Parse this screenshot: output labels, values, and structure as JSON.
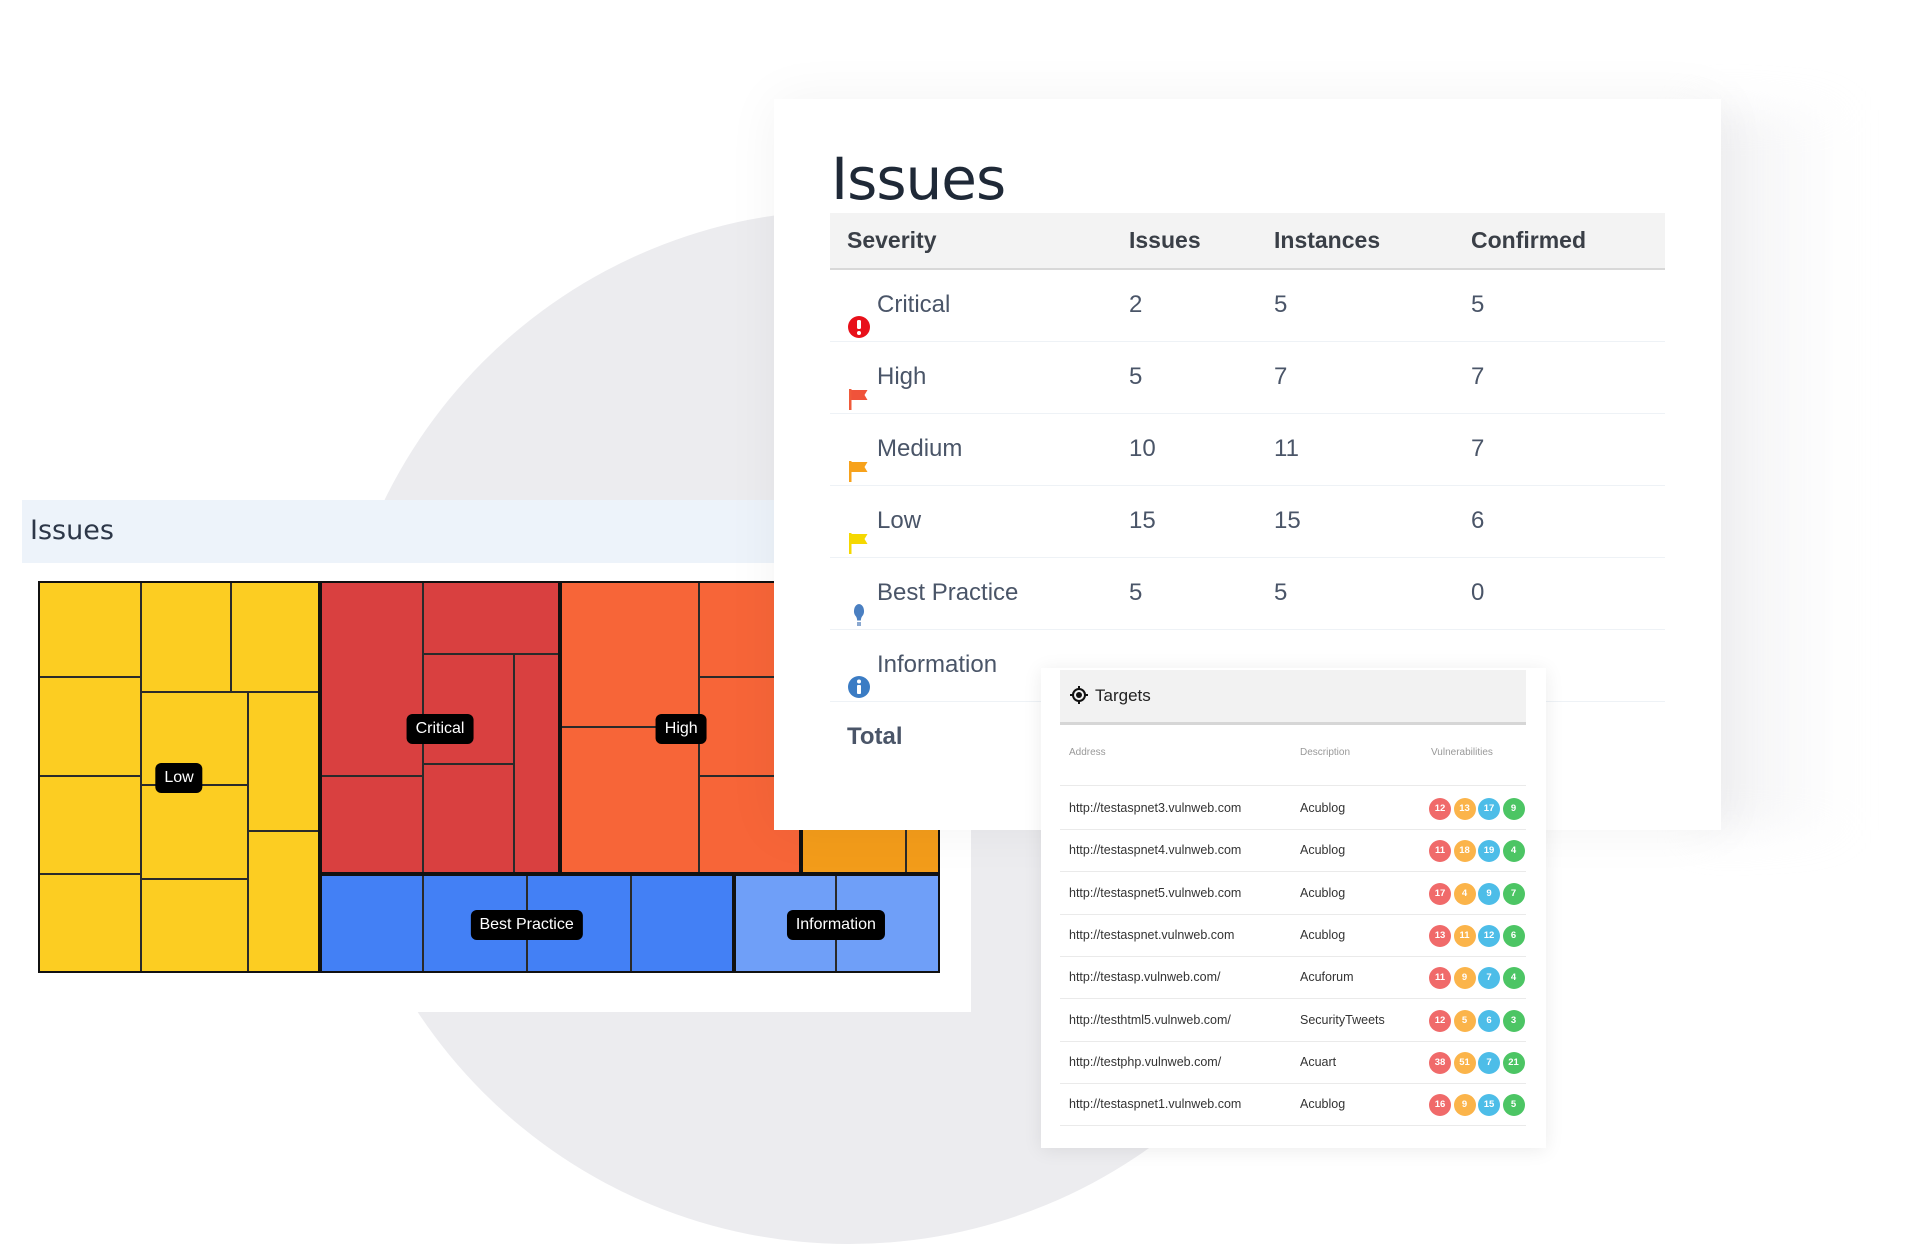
{
  "colors": {
    "low": "#fccd22",
    "critical": "#d94040",
    "high": "#f76538",
    "medium": "#f39c1a",
    "best_practice": "#4380f5",
    "information": "#6f9ff8",
    "badge_red": "#f06a6a",
    "badge_orange": "#fbb44a",
    "badge_blue": "#4dbde8",
    "badge_green": "#4cc564"
  },
  "treemap_panel": {
    "title": "Issues",
    "groups": [
      {
        "key": "low",
        "label": "Low"
      },
      {
        "key": "critical",
        "label": "Critical"
      },
      {
        "key": "high",
        "label": "High"
      },
      {
        "key": "medium",
        "label": ""
      },
      {
        "key": "best_practice",
        "label": "Best Practice"
      },
      {
        "key": "information",
        "label": "Information"
      }
    ]
  },
  "issues_card": {
    "title": "Issues",
    "columns": [
      "Severity",
      "Issues",
      "Instances",
      "Confirmed"
    ],
    "rows": [
      {
        "severity": "Critical",
        "icon": "critical-exclamation-icon",
        "issues": "2",
        "instances": "5",
        "confirmed": "5"
      },
      {
        "severity": "High",
        "icon": "high-flag-icon",
        "issues": "5",
        "instances": "7",
        "confirmed": "7"
      },
      {
        "severity": "Medium",
        "icon": "medium-flag-icon",
        "issues": "10",
        "instances": "11",
        "confirmed": "7"
      },
      {
        "severity": "Low",
        "icon": "low-flag-icon",
        "issues": "15",
        "instances": "15",
        "confirmed": "6"
      },
      {
        "severity": "Best Practice",
        "icon": "lightbulb-icon",
        "issues": "5",
        "instances": "5",
        "confirmed": "0"
      },
      {
        "severity": "Information",
        "icon": "info-icon",
        "issues": "",
        "instances": "",
        "confirmed": ""
      }
    ],
    "total_label": "Total"
  },
  "targets": {
    "title": "Targets",
    "icon": "crosshair-icon",
    "columns": [
      "Address",
      "Description",
      "Vulnerabilities"
    ],
    "rows": [
      {
        "address": "http://testaspnet3.vulnweb.com",
        "description": "Acublog",
        "vulns": [
          "12",
          "13",
          "17",
          "9"
        ]
      },
      {
        "address": "http://testaspnet4.vulnweb.com",
        "description": "Acublog",
        "vulns": [
          "11",
          "18",
          "19",
          "4"
        ]
      },
      {
        "address": "http://testaspnet5.vulnweb.com",
        "description": "Acublog",
        "vulns": [
          "17",
          "4",
          "9",
          "7"
        ]
      },
      {
        "address": "http://testaspnet.vulnweb.com",
        "description": "Acublog",
        "vulns": [
          "13",
          "11",
          "12",
          "6"
        ]
      },
      {
        "address": "http://testasp.vulnweb.com/",
        "description": "Acuforum",
        "vulns": [
          "11",
          "9",
          "7",
          "4"
        ]
      },
      {
        "address": "http://testhtml5.vulnweb.com/",
        "description": "SecurityTweets",
        "vulns": [
          "12",
          "5",
          "6",
          "3"
        ]
      },
      {
        "address": "http://testphp.vulnweb.com/",
        "description": "Acuart",
        "vulns": [
          "38",
          "51",
          "7",
          "21"
        ]
      },
      {
        "address": "http://testaspnet1.vulnweb.com",
        "description": "Acublog",
        "vulns": [
          "16",
          "9",
          "15",
          "5"
        ]
      }
    ]
  }
}
